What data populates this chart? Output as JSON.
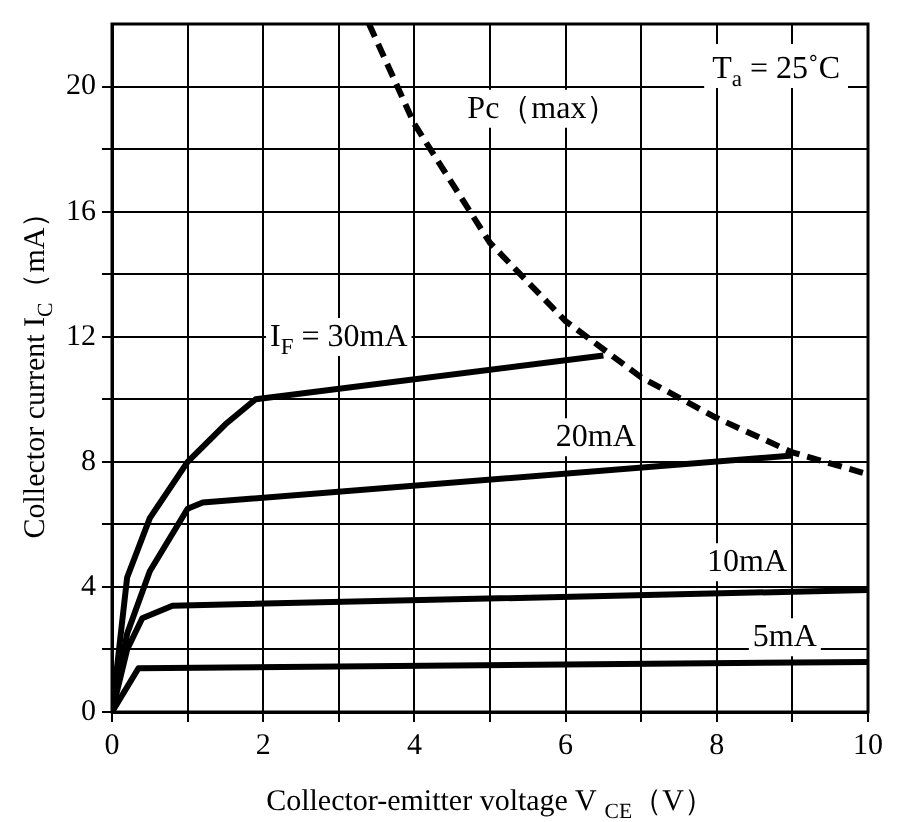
{
  "chart_data": {
    "type": "line",
    "xlabel": "Collector-emitter voltage V $_{CE}$（V）",
    "ylabel": "Collector current I$_{C}$（mA）",
    "annotations": [
      "T$_{a}$ = 25˚C"
    ],
    "xlim": [
      0,
      10
    ],
    "ylim": [
      0,
      22
    ],
    "xticks": [
      0,
      {
        "value": 1,
        "label": null
      },
      2,
      {
        "value": 3,
        "label": null
      },
      4,
      {
        "value": 5,
        "label": null
      },
      6,
      {
        "value": 7,
        "label": null
      },
      8,
      {
        "value": 9,
        "label": null
      },
      10
    ],
    "yticks": [
      0,
      {
        "value": 2,
        "label": null
      },
      4,
      {
        "value": 6,
        "label": null
      },
      8,
      {
        "value": 10,
        "label": null
      },
      12,
      {
        "value": 14,
        "label": null
      },
      16,
      {
        "value": 18,
        "label": null
      },
      20
    ],
    "grid": true,
    "legend": false,
    "marker": "none",
    "line_style": "solid",
    "series": [
      {
        "name": "Pc（max）",
        "color": "#000000",
        "line_style": "dashed",
        "x": [
          3.4,
          4,
          5,
          6,
          7,
          8,
          9,
          10
        ],
        "values": [
          22,
          18.8,
          15,
          12.5,
          10.7,
          9.4,
          8.3,
          7.6
        ]
      },
      {
        "name": "I$_{F}$ = 30mA",
        "color": "#000000",
        "x": [
          0,
          0.2,
          0.5,
          1,
          1.5,
          1.9,
          6.5
        ],
        "values": [
          0,
          4.3,
          6.2,
          8,
          9.2,
          10,
          11.4
        ]
      },
      {
        "name": "20mA",
        "color": "#000000",
        "x": [
          0,
          0.2,
          0.5,
          1,
          1.2,
          9
        ],
        "values": [
          0,
          2.5,
          4.5,
          6.5,
          6.7,
          8.2
        ]
      },
      {
        "name": "10mA",
        "color": "#000000",
        "x": [
          0,
          0.2,
          0.4,
          0.8,
          10
        ],
        "values": [
          0,
          2,
          3,
          3.4,
          3.9
        ]
      },
      {
        "name": "5mA",
        "color": "#000000",
        "x": [
          0,
          0.35,
          10
        ],
        "values": [
          0,
          1.4,
          1.6
        ]
      }
    ]
  }
}
